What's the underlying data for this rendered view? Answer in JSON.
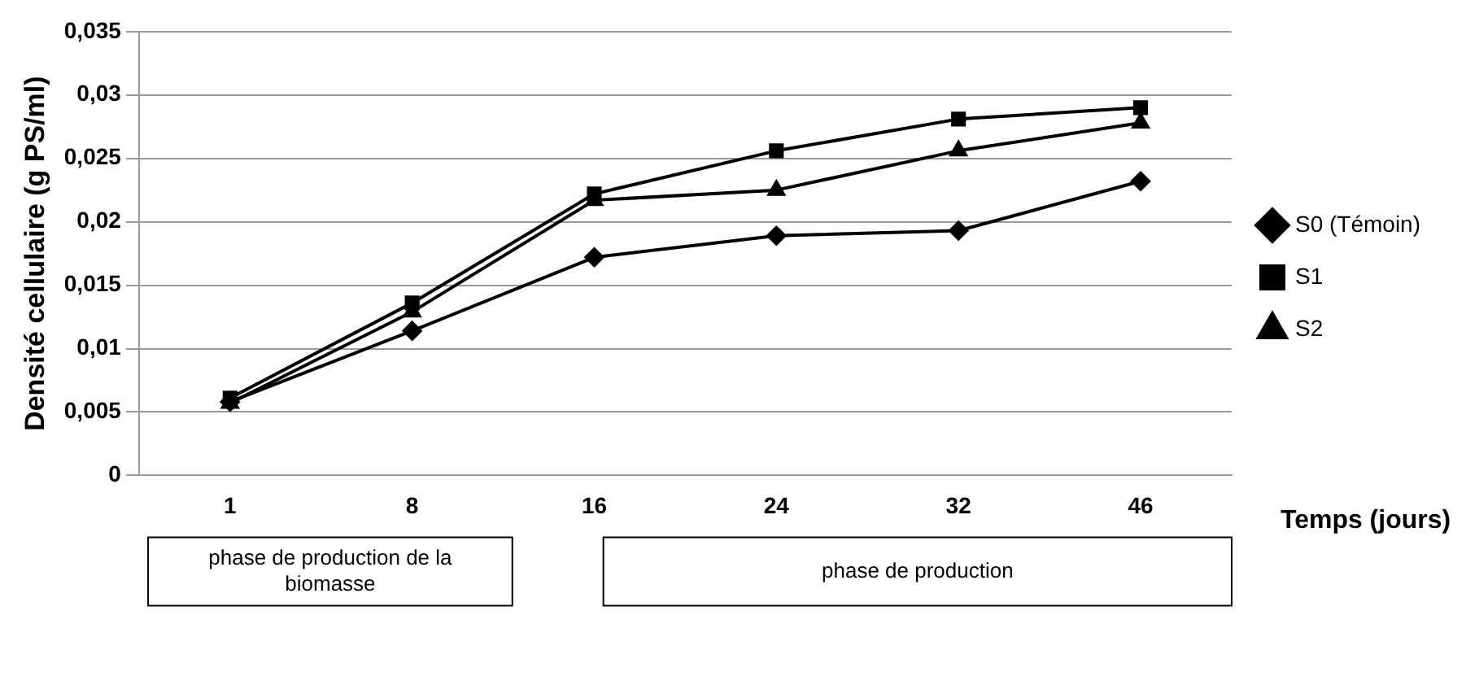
{
  "chart_data": {
    "type": "line",
    "xlabel": "Temps (jours)",
    "ylabel": "Densité cellulaire (g PS/ml)",
    "categories": [
      "1",
      "8",
      "16",
      "24",
      "32",
      "46"
    ],
    "series": [
      {
        "name": "S0 (Témoin)",
        "color": "#000000",
        "marker": "diamond",
        "values": [
          0.0058,
          0.0114,
          0.0172,
          0.0189,
          0.0193,
          0.0232
        ]
      },
      {
        "name": "S1",
        "color": "#000000",
        "marker": "square",
        "values": [
          0.0061,
          0.0136,
          0.0222,
          0.0256,
          0.0281,
          0.029
        ]
      },
      {
        "name": "S2",
        "color": "#000000",
        "marker": "triangle",
        "values": [
          0.0057,
          0.0129,
          0.0217,
          0.0225,
          0.0256,
          0.0278
        ]
      }
    ],
    "ylim": [
      0,
      0.035
    ],
    "yticks": [
      0,
      {
        "value": 0.005,
        "label": "0,005"
      },
      {
        "value": 0.01,
        "label": "0,01"
      },
      {
        "value": 0.015,
        "label": "0,015"
      },
      {
        "value": 0.02,
        "label": "0,02"
      },
      {
        "value": 0.025,
        "label": "0,025"
      },
      {
        "value": 0.03,
        "label": "0,03"
      },
      {
        "value": 0.035,
        "label": "0,035"
      }
    ],
    "grid": "y",
    "legend": "right",
    "line_style": "solid",
    "annotations": [
      "phase de production de la biomasse",
      "phase de production"
    ]
  }
}
